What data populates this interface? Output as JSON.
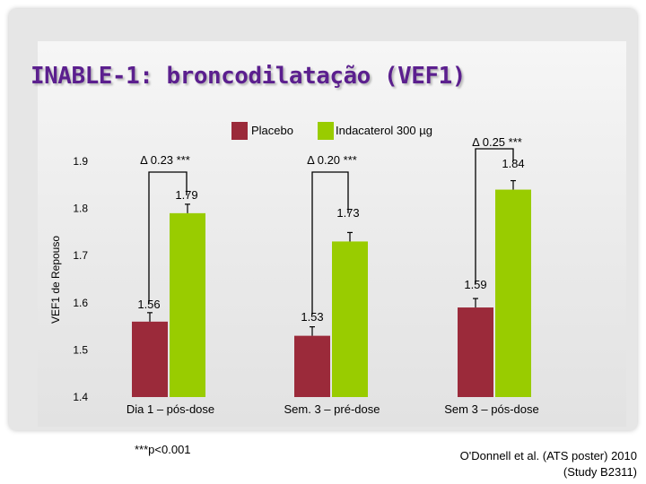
{
  "title": "INABLE-1: broncodilatação (VEF1)",
  "footnote": "***p<0.001",
  "citation": {
    "line1": "O'Donnell et al. (ATS poster) 2010",
    "line2": "(Study B2311)"
  },
  "colors": {
    "placebo": "#9b2a3a",
    "indacaterol": "#99cc00",
    "title": "#5b1f8e"
  },
  "chart_data": {
    "type": "bar",
    "ylabel": "VEF1 de Repouso",
    "ylim": [
      1.4,
      1.9
    ],
    "yticks": [
      "1.4",
      "1.5",
      "1.6",
      "1.7",
      "1.8",
      "1.9"
    ],
    "categories": [
      "Dia 1 – pós-dose",
      "Sem. 3 – pré-dose",
      "Sem 3 – pós-dose"
    ],
    "series": [
      {
        "name": "Placebo",
        "values": [
          1.56,
          1.53,
          1.59
        ],
        "labels": [
          "1.56",
          "1.53",
          "1.59"
        ]
      },
      {
        "name": "Indacaterol 300 µg",
        "values": [
          1.79,
          1.73,
          1.84
        ],
        "labels": [
          "1.79",
          "1.73",
          "1.84"
        ]
      }
    ],
    "annotations": [
      "Δ 0.23 ***",
      "Δ 0.20 ***",
      "Δ 0.25 ***"
    ],
    "legend": "top-center",
    "grid": false
  }
}
